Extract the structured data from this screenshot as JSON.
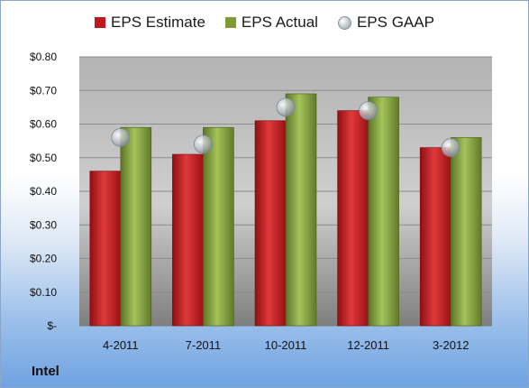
{
  "company": "Intel",
  "colors": {
    "estimate": "#c0181c",
    "actual": "#7d9a35",
    "gaap": "#b7bfc6"
  },
  "chart_data": {
    "type": "bar",
    "categories": [
      "4-2011",
      "7-2011",
      "10-2011",
      "12-2011",
      "3-2012"
    ],
    "series": [
      {
        "name": "EPS Estimate",
        "type": "bar",
        "values": [
          0.46,
          0.51,
          0.61,
          0.64,
          0.53
        ]
      },
      {
        "name": "EPS Actual",
        "type": "bar",
        "values": [
          0.59,
          0.59,
          0.69,
          0.68,
          0.56
        ]
      },
      {
        "name": "EPS GAAP",
        "type": "scatter",
        "values": [
          0.56,
          0.54,
          0.65,
          0.64,
          0.53
        ]
      }
    ],
    "ylim": [
      0,
      0.8
    ],
    "yticks": [
      0,
      0.1,
      0.2,
      0.3,
      0.4,
      0.5,
      0.6,
      0.7,
      0.8
    ],
    "ytick_labels": [
      "$-",
      "$0.10",
      "$0.20",
      "$0.30",
      "$0.40",
      "$0.50",
      "$0.60",
      "$0.70",
      "$0.80"
    ],
    "grid": true,
    "legend_position": "top"
  }
}
